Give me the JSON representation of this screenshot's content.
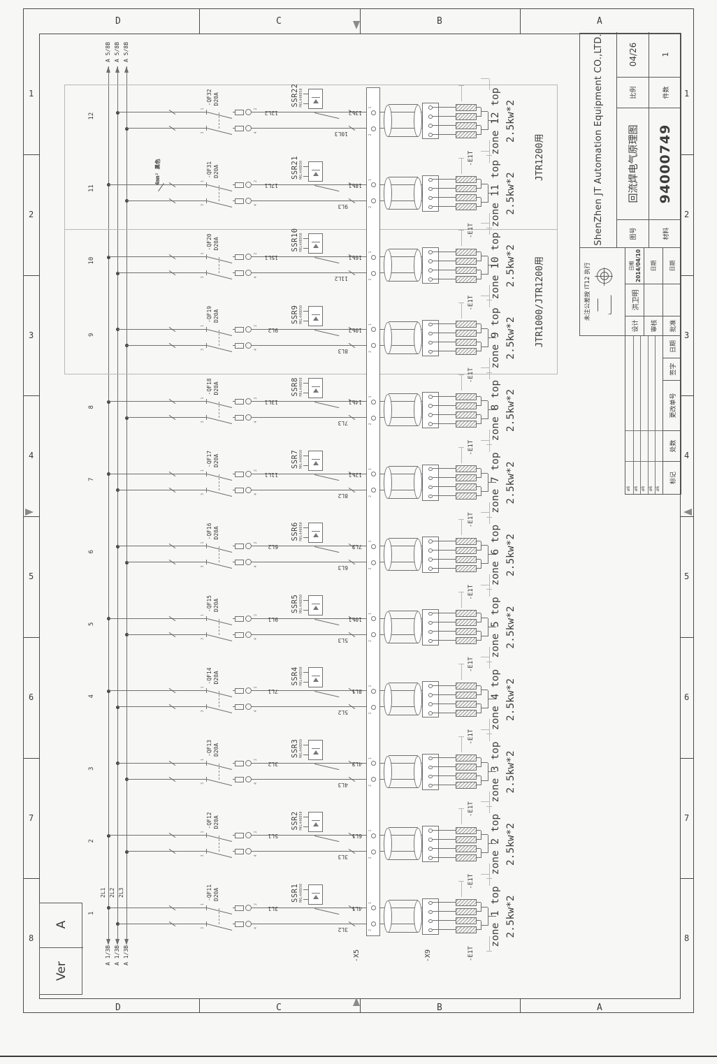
{
  "colors": {
    "line": "#6f6f6f",
    "light": "#b8b8b8",
    "text": "#3c3c3c"
  },
  "border": {
    "col_letters": [
      "D",
      "C",
      "B",
      "A"
    ],
    "row_numbers": [
      "1",
      "2",
      "3",
      "4",
      "5",
      "6",
      "7",
      "8"
    ]
  },
  "revision_box": {
    "version_label": "Ver",
    "version_value": "A"
  },
  "bus": {
    "phase_labels": [
      "2L1",
      "2L2",
      "2L3"
    ],
    "left_refs": [
      "A 1/3B",
      "A 1/3B",
      "A 1/3B"
    ],
    "right_refs": [
      "A 5/8B",
      "A 5/8B",
      "A 5/8B"
    ],
    "wire_note": "4mm² 黑色"
  },
  "terminal_strips": {
    "x5": "-X5",
    "x9": "-X9"
  },
  "groups": [
    {
      "label": "JTR1000/JTR1200用",
      "from": 9,
      "to": 10
    },
    {
      "label": "JTR1200用",
      "from": 11,
      "to": 12
    }
  ],
  "zone_common": {
    "rating": "D20A",
    "ssr_model": "MKL440D50",
    "heater": "-E1T",
    "power": "2.5kw*2",
    "breaker_terminals": [
      "1",
      "3",
      "2",
      "4"
    ],
    "x5_terminals": [
      "1",
      "2"
    ]
  },
  "zones": [
    {
      "n": "1",
      "qf": "-QF11",
      "ssr": "SSR1",
      "a1": "3L1",
      "a2": "4L1",
      "b": "3L2",
      "ph": [
        1,
        2
      ],
      "label": "zone 1 top"
    },
    {
      "n": "2",
      "qf": "-QF12",
      "ssr": "SSR2",
      "a1": "5L1",
      "a2": "6L1",
      "b": "3L3",
      "ph": [
        1,
        3
      ],
      "label": "zone 2 top"
    },
    {
      "n": "3",
      "qf": "-QF13",
      "ssr": "SSR3",
      "a1": "3L2",
      "a2": "4L2",
      "b": "4L3",
      "ph": [
        2,
        3
      ],
      "label": "zone 3 top"
    },
    {
      "n": "4",
      "qf": "-QF14",
      "ssr": "SSR4",
      "a1": "7L1",
      "a2": "8L1",
      "b": "5L2",
      "ph": [
        1,
        2
      ],
      "label": "zone 4 top"
    },
    {
      "n": "5",
      "qf": "-QF15",
      "ssr": "SSR5",
      "a1": "9L1",
      "a2": "10L1",
      "b": "5L3",
      "ph": [
        1,
        3
      ],
      "label": "zone 5 top"
    },
    {
      "n": "6",
      "qf": "-QF16",
      "ssr": "SSR6",
      "a1": "6L2",
      "a2": "7L2",
      "b": "6L3",
      "ph": [
        2,
        3
      ],
      "label": "zone 6 top"
    },
    {
      "n": "7",
      "qf": "-QF17",
      "ssr": "SSR7",
      "a1": "11L1",
      "a2": "12L1",
      "b": "8L2",
      "ph": [
        1,
        2
      ],
      "label": "zone 7 top"
    },
    {
      "n": "8",
      "qf": "-QF18",
      "ssr": "SSR8",
      "a1": "13L1",
      "a2": "14L1",
      "b": "7L3",
      "ph": [
        1,
        3
      ],
      "label": "zone 8 top"
    },
    {
      "n": "9",
      "qf": "-QF19",
      "ssr": "SSR9",
      "a1": "9L2",
      "a2": "10L2",
      "b": "8L3",
      "ph": [
        2,
        3
      ],
      "label": "zone 9 top"
    },
    {
      "n": "10",
      "qf": "-QF20",
      "ssr": "SSR10",
      "a1": "15L1",
      "a2": "16L1",
      "b": "11L2",
      "ph": [
        1,
        2
      ],
      "label": "zone 10 top"
    },
    {
      "n": "11",
      "qf": "-QF31",
      "ssr": "SSR21",
      "a1": "17L1",
      "a2": "18L1",
      "b": "9L3",
      "ph": [
        1,
        3
      ],
      "label": "zone 11 top"
    },
    {
      "n": "12",
      "qf": "-QF32",
      "ssr": "SSR22",
      "a1": "12L2",
      "a2": "13L2",
      "b": "10L3",
      "ph": [
        2,
        3
      ],
      "label": "zone 12 top"
    }
  ],
  "title_block": {
    "company": "ShenZhen JT Automation Equipment CO.,LTD.",
    "drawing_title": "回流焊电气原理图",
    "drawing_no_label": "图号",
    "drawing_no": "94000749",
    "scale_label": "比例",
    "scale": "04/26",
    "qty_label": "件数",
    "qty": "1",
    "material_label": "材料",
    "tolerance_note": "未注公差按 IT12 执行",
    "designer_label": "设计",
    "designer": "洪卫明",
    "checker_label": "审核",
    "approver_label": "批准",
    "date_label": "日期",
    "design_date": "2014/04/10",
    "rev_headers": [
      "标记",
      "处数",
      "更改单号",
      "签字",
      "日期"
    ],
    "rev_marks": [
      "ø6",
      "ø6",
      "ø6",
      "ø6",
      "ø6"
    ]
  }
}
